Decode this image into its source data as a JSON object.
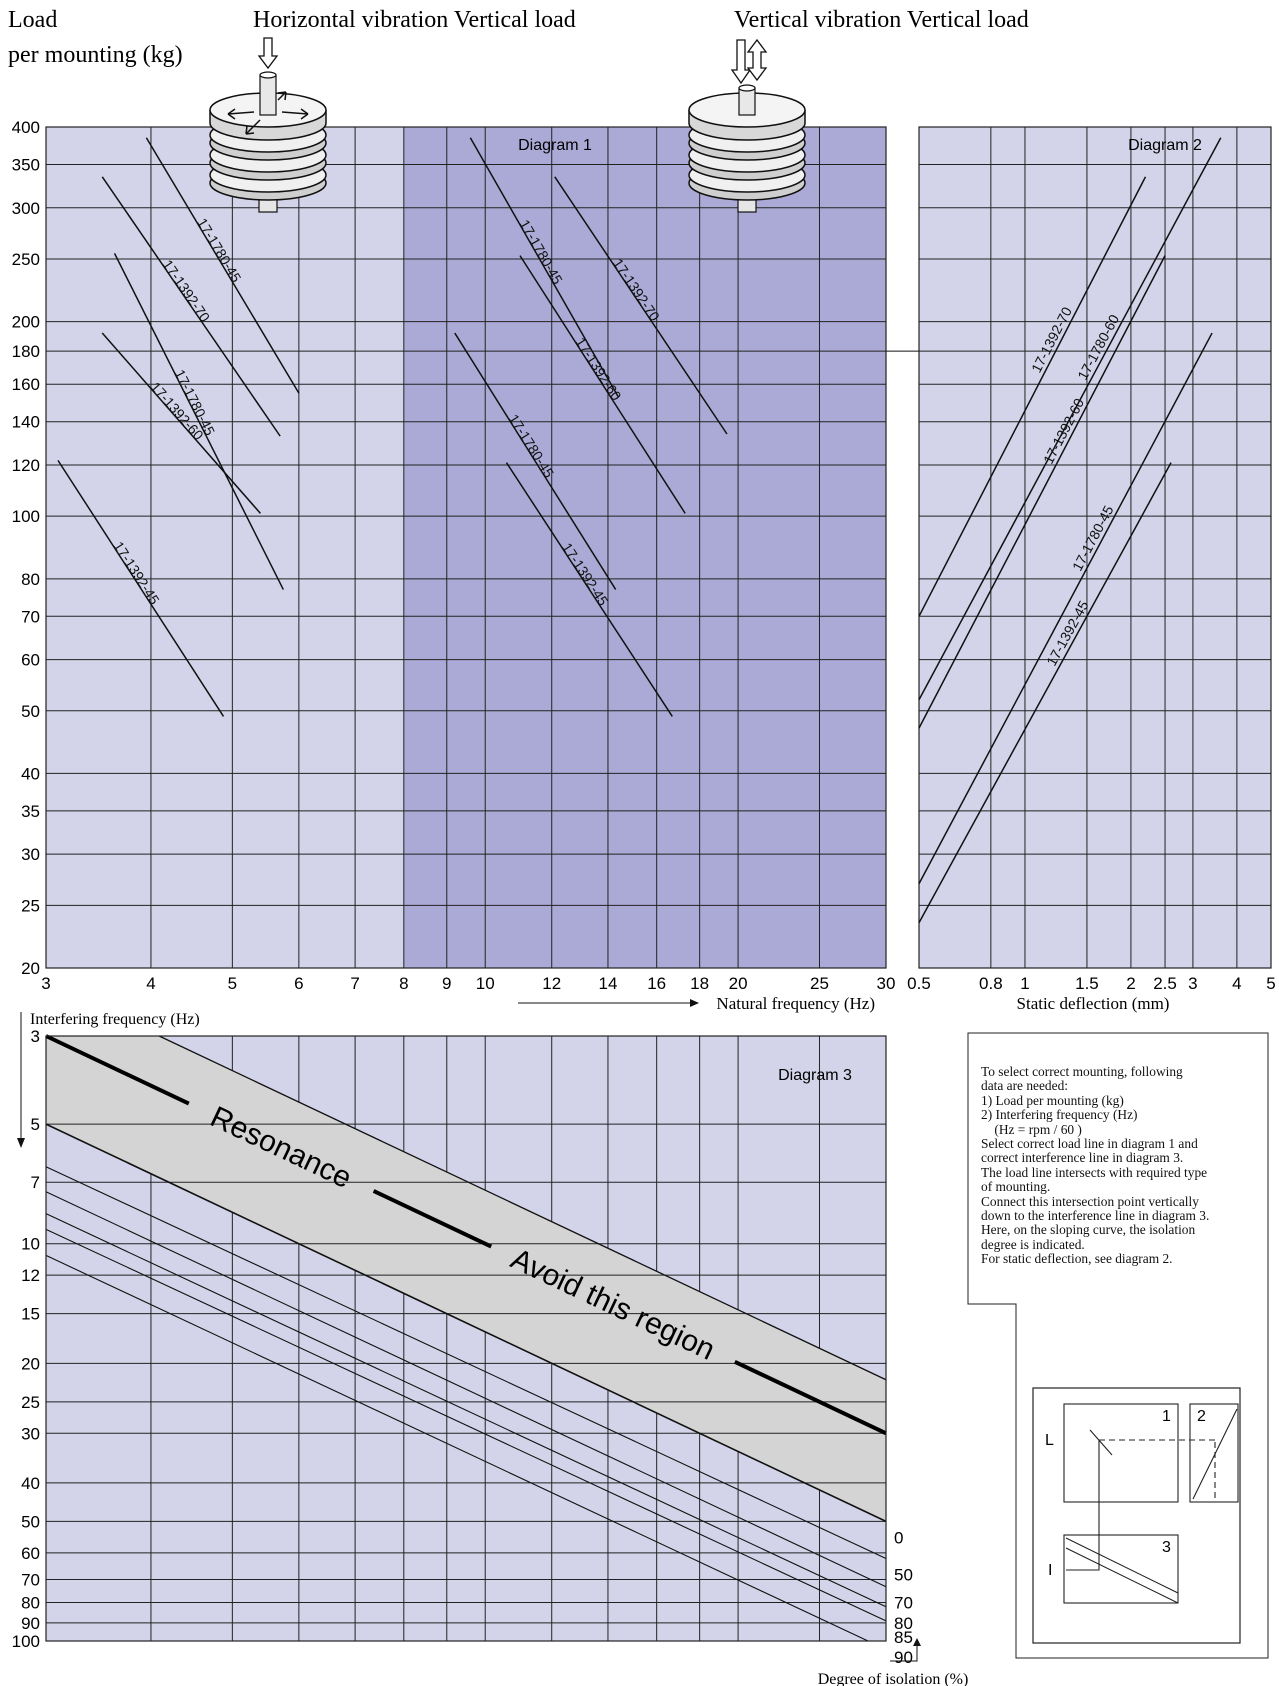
{
  "header": {
    "load_line1": "Load",
    "load_line2": "per mounting (kg)",
    "horizontal_title": "Horizontal vibration Vertical load",
    "vertical_title": "Vertical vibration Vertical load"
  },
  "colors": {
    "panel_light": "#d3d4e9",
    "panel_dark": "#abaad6",
    "resonance_band": "#d4d4d4",
    "grid": "#222222"
  },
  "chart_data": [
    {
      "type": "line",
      "title": "Diagram 1",
      "xlabel": "Natural frequency (Hz)",
      "ylabel": "Load per mounting (kg)",
      "x_scale": "log",
      "y_scale": "log",
      "xlim": [
        3,
        30
      ],
      "ylim": [
        20,
        400
      ],
      "x_ticks": [
        "3",
        "4",
        "5",
        "6",
        "7",
        "8",
        "9",
        "10",
        "12",
        "14",
        "16",
        "18",
        "20",
        "25",
        "30"
      ],
      "y_ticks": [
        "400",
        "350",
        "300",
        "250",
        "200",
        "180",
        "160",
        "140",
        "120",
        "100",
        "80",
        "70",
        "60",
        "50",
        "40",
        "35",
        "30",
        "25",
        "20"
      ],
      "shaded_x_range": [
        8,
        30
      ],
      "reference_load": 180,
      "panel_labels": {
        "left": "Horizontal vibration Vertical load",
        "right": "Vertical vibration Vertical load"
      },
      "series": [
        {
          "name": "17-1780-45",
          "group": "horizontal",
          "x": [
            3.95,
            6.0
          ],
          "y": [
            385,
            155
          ]
        },
        {
          "name": "17-1392-70",
          "group": "horizontal",
          "x": [
            3.5,
            5.7
          ],
          "y": [
            335,
            133
          ]
        },
        {
          "name": "17-1392-60",
          "group": "horizontal",
          "x": [
            3.5,
            5.4
          ],
          "y": [
            192,
            101
          ]
        },
        {
          "name": "17-1780-45",
          "group": "horizontal",
          "x": [
            3.62,
            5.75
          ],
          "y": [
            255,
            77
          ]
        },
        {
          "name": "17-1392-45",
          "group": "horizontal",
          "x": [
            3.1,
            4.88
          ],
          "y": [
            122,
            49
          ]
        },
        {
          "name": "17-1780-45",
          "group": "vertical",
          "x": [
            9.6,
            14.4
          ],
          "y": [
            385,
            153
          ]
        },
        {
          "name": "17-1392-70",
          "group": "vertical",
          "x": [
            12.1,
            19.4
          ],
          "y": [
            335,
            134
          ]
        },
        {
          "name": "17-1392-60",
          "group": "vertical",
          "x": [
            11.0,
            17.3
          ],
          "y": [
            253,
            101
          ]
        },
        {
          "name": "17-1780-45",
          "group": "vertical",
          "x": [
            9.2,
            14.3
          ],
          "y": [
            192,
            77
          ]
        },
        {
          "name": "17-1392-45",
          "group": "vertical",
          "x": [
            10.6,
            16.7
          ],
          "y": [
            121,
            49
          ]
        }
      ]
    },
    {
      "type": "line",
      "title": "Diagram 2",
      "xlabel": "Static deflection (mm)",
      "x_scale": "log",
      "y_scale": "log",
      "xlim": [
        0.5,
        5
      ],
      "ylim": [
        20,
        400
      ],
      "x_ticks": [
        "0.5",
        "0.8",
        "1",
        "1.5",
        "2",
        "2.5",
        "3",
        "4",
        "5"
      ],
      "series": [
        {
          "name": "17-1392-70",
          "x": [
            0.5,
            2.2
          ],
          "y": [
            70,
            335
          ]
        },
        {
          "name": "17-1780-60",
          "x": [
            0.5,
            3.6
          ],
          "y": [
            52,
            385
          ]
        },
        {
          "name": "17-1392-60",
          "x": [
            0.5,
            2.5
          ],
          "y": [
            47,
            253
          ]
        },
        {
          "name": "17-1780-45",
          "x": [
            0.5,
            3.4
          ],
          "y": [
            27,
            192
          ]
        },
        {
          "name": "17-1392-45",
          "x": [
            0.5,
            2.6
          ],
          "y": [
            23.5,
            121
          ]
        }
      ]
    },
    {
      "type": "line",
      "title": "Diagram 3",
      "xlabel": "Natural frequency (Hz)",
      "ylabel": "Interfering frequency (Hz)",
      "x_scale": "log",
      "y_scale": "log",
      "y_inverted": true,
      "xlim": [
        3,
        30
      ],
      "ylim": [
        3,
        100
      ],
      "y_ticks": [
        "3",
        "5",
        "7",
        "10",
        "12",
        "15",
        "20",
        "25",
        "30",
        "40",
        "50",
        "60",
        "70",
        "80",
        "90",
        "100"
      ],
      "annotation_resonance": "Resonance",
      "annotation_avoid": "Avoid this region",
      "resonance_band_lower_isolation": 0,
      "isolation_label": "Degree of isolation (%)",
      "isolation_lines": [
        {
          "name": "0",
          "y_at_x3": 5,
          "y_at_x30": 50
        },
        {
          "name": "50",
          "y_at_x3": 6.4,
          "y_at_x30": 62
        },
        {
          "name": "70",
          "y_at_x3": 7.4,
          "y_at_x30": 73
        },
        {
          "name": "80",
          "y_at_x3": 8.4,
          "y_at_x30": 82
        },
        {
          "name": "85",
          "y_at_x3": 9.2,
          "y_at_x30": 89
        },
        {
          "name": "90",
          "y_at_x3": 10.7,
          "y_at_x30": 105
        }
      ],
      "resonance_line": {
        "x": [
          3,
          30
        ],
        "y": [
          3,
          30
        ]
      },
      "band_upper": {
        "x": [
          3,
          30
        ],
        "y": [
          2.2,
          22
        ]
      }
    }
  ],
  "instructions": [
    "To select correct mounting, following",
    "data are needed:",
    "1) Load per mounting (kg)",
    "2) Interfering frequency (Hz)",
    "    (Hz = rpm / 60 )",
    "Select correct load line in diagram 1 and",
    "correct interference line in diagram 3.",
    "The load line intersects with required type",
    "of mounting.",
    "Connect this intersection point vertically",
    "down to the interference line in diagram 3.",
    "Here, on the sloping curve, the isolation",
    "degree is indicated.",
    "For static deflection, see diagram 2."
  ],
  "inset": {
    "label_1": "1",
    "label_2": "2",
    "label_3": "3",
    "label_L": "L",
    "label_I": "I"
  }
}
